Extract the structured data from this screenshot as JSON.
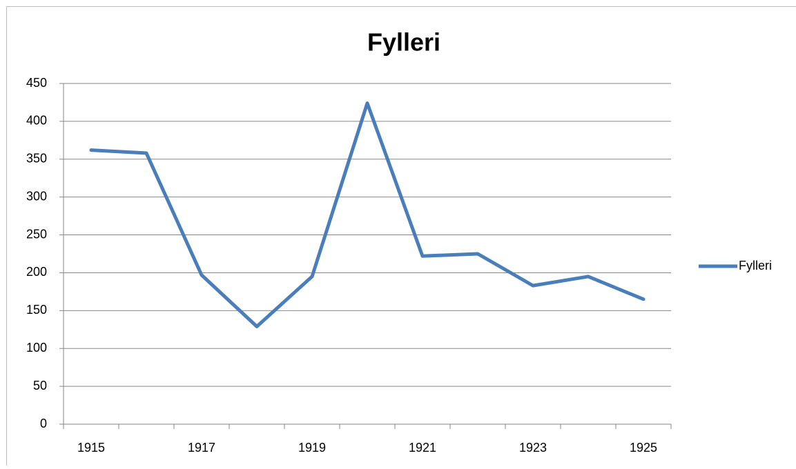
{
  "chart_data": {
    "type": "line",
    "title": "Fylleri",
    "categories": [
      "1915",
      null,
      "1917",
      null,
      "1919",
      null,
      "1921",
      null,
      "1923",
      null,
      "1925"
    ],
    "series": [
      {
        "name": "Fylleri",
        "color": "#4a7ebb",
        "values": [
          362,
          358,
          197,
          129,
          195,
          424,
          222,
          225,
          183,
          195,
          165
        ]
      }
    ],
    "ylim": [
      0,
      450
    ],
    "yticks": [
      0,
      50,
      100,
      150,
      200,
      250,
      300,
      350,
      400,
      450
    ],
    "grid": true,
    "legend": "right"
  }
}
